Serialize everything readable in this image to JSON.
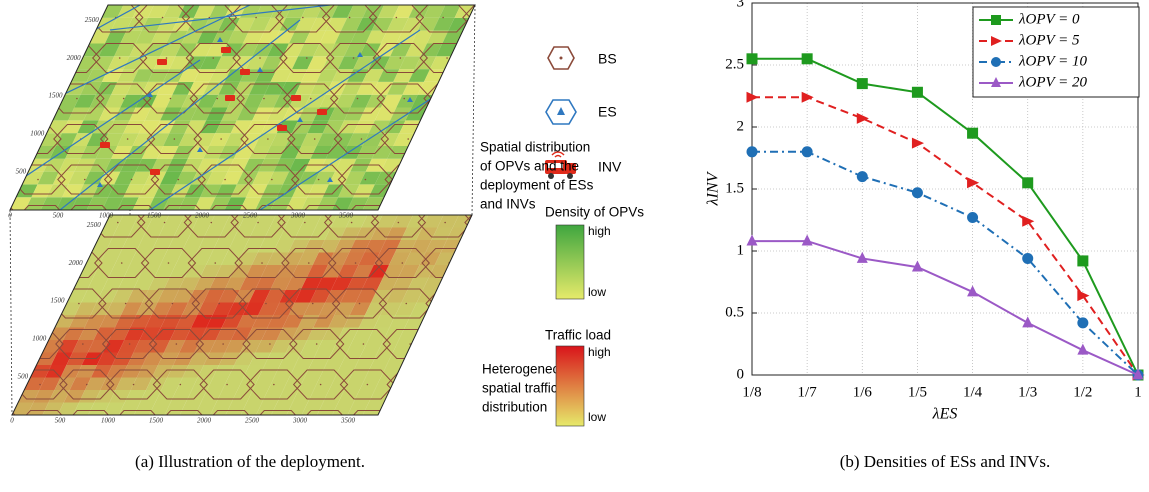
{
  "figure_a": {
    "map_x_ticks": [
      0,
      500,
      1000,
      1500,
      2000,
      2500,
      3000,
      3500
    ],
    "map_y_ticks": [
      500,
      1000,
      1500,
      2000,
      2500
    ],
    "legend": {
      "bs": "BS",
      "es": "ES",
      "inv": "INV"
    },
    "top_note": [
      "Spatial distribution",
      "of OPVs and the",
      "deployment of ESs",
      "and INVs"
    ],
    "bottom_note": [
      "Heterogeneous",
      "spatial traffic",
      "distribution"
    ],
    "density_bar": {
      "title": "Density of OPVs",
      "high": "high",
      "low": "low"
    },
    "traffic_bar": {
      "title": "Traffic load",
      "high": "high",
      "low": "low"
    },
    "caption": "(a) Illustration of the deployment."
  },
  "chart_data": {
    "type": "line",
    "x_label": "λES",
    "y_label": "λINV",
    "categories": [
      "1/8",
      "1/7",
      "1/6",
      "1/5",
      "1/4",
      "1/3",
      "1/2",
      "1"
    ],
    "ylim": [
      0,
      3
    ],
    "yticks": [
      0,
      0.5,
      1,
      1.5,
      2,
      2.5,
      3
    ],
    "grid": true,
    "legend": "upper right",
    "series": [
      {
        "name": "λOPV = 0",
        "color": "#1e9a1e",
        "marker": "square",
        "dash": "solid",
        "values": [
          2.55,
          2.55,
          2.35,
          2.28,
          1.95,
          1.55,
          0.92,
          0
        ]
      },
      {
        "name": "λOPV = 5",
        "color": "#e02020",
        "marker": "triangle-right",
        "dash": "dashed",
        "values": [
          2.24,
          2.24,
          2.07,
          1.87,
          1.55,
          1.24,
          0.64,
          0
        ]
      },
      {
        "name": "λOPV = 10",
        "color": "#1f6fb5",
        "marker": "circle",
        "dash": "dashdot",
        "values": [
          1.8,
          1.8,
          1.6,
          1.47,
          1.27,
          0.94,
          0.42,
          0
        ]
      },
      {
        "name": "λOPV = 20",
        "color": "#9b59c6",
        "marker": "triangle-up",
        "dash": "solid",
        "values": [
          1.08,
          1.08,
          0.94,
          0.87,
          0.67,
          0.42,
          0.2,
          0
        ]
      }
    ],
    "caption": "(b) Densities of ESs and INVs."
  }
}
